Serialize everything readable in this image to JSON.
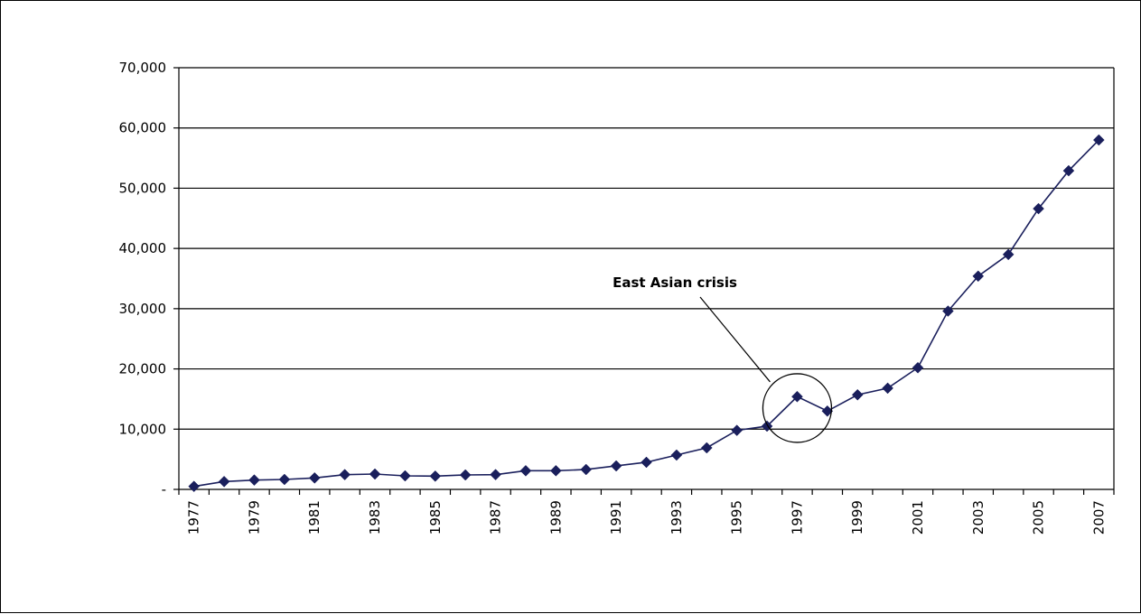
{
  "chart_data": {
    "type": "line",
    "title": "",
    "xlabel": "",
    "ylabel": "",
    "x": [
      1977,
      1978,
      1979,
      1980,
      1981,
      1982,
      1983,
      1984,
      1985,
      1986,
      1987,
      1988,
      1989,
      1990,
      1991,
      1992,
      1993,
      1994,
      1995,
      1996,
      1997,
      1998,
      1999,
      2000,
      2001,
      2002,
      2003,
      2004,
      2005,
      2006,
      2007
    ],
    "x_tick_labels": [
      "1977",
      "1979",
      "1981",
      "1983",
      "1985",
      "1987",
      "1989",
      "1991",
      "1993",
      "1995",
      "1997",
      "1999",
      "2001",
      "2003",
      "2005",
      "2007"
    ],
    "x_tick_values": [
      1977,
      1979,
      1981,
      1983,
      1985,
      1987,
      1989,
      1991,
      1993,
      1995,
      1997,
      1999,
      2001,
      2003,
      2005,
      2007
    ],
    "y_tick_values": [
      0,
      10000,
      20000,
      30000,
      40000,
      50000,
      60000,
      70000
    ],
    "y_tick_labels": [
      "-",
      "10,000",
      "20,000",
      "30,000",
      "40,000",
      "50,000",
      "60,000",
      "70,000"
    ],
    "ylim": [
      0,
      70000
    ],
    "grid": "horizontal",
    "series": [
      {
        "values": [
          500,
          1300,
          1550,
          1650,
          1900,
          2450,
          2550,
          2250,
          2200,
          2400,
          2450,
          3100,
          3100,
          3300,
          3900,
          4500,
          5700,
          6900,
          9800,
          10500,
          15400,
          13000,
          15700,
          16800,
          20200,
          29600,
          35400,
          39000,
          46600,
          52900,
          58000
        ],
        "color": "#1a1f5c",
        "marker": "diamond"
      }
    ],
    "annotations": [
      {
        "text": "East Asian crisis",
        "target_x": 1997,
        "target_y": 13500
      }
    ]
  }
}
